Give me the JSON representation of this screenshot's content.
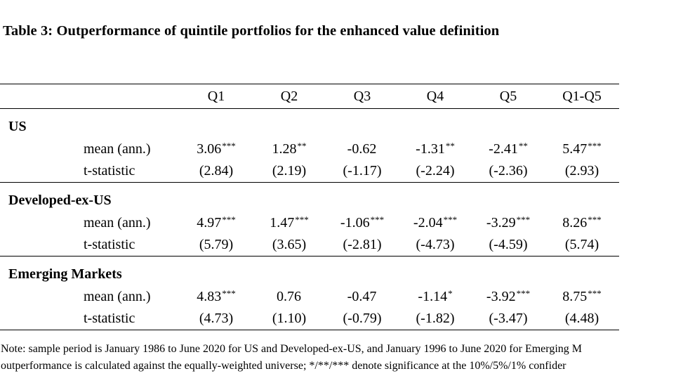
{
  "title": "Table 3: Outperformance of quintile portfolios for the enhanced value definition",
  "columns": [
    "Q1",
    "Q2",
    "Q3",
    "Q4",
    "Q5",
    "Q1-Q5"
  ],
  "groups": [
    {
      "name": "US",
      "mean_label": "mean (ann.)",
      "tstat_label": "t-statistic",
      "means": [
        {
          "value": "3.06",
          "stars": "***"
        },
        {
          "value": "1.28",
          "stars": "**"
        },
        {
          "value": "-0.62",
          "stars": ""
        },
        {
          "value": "-1.31",
          "stars": "**"
        },
        {
          "value": "-2.41",
          "stars": "**"
        },
        {
          "value": "5.47",
          "stars": "***"
        }
      ],
      "tstats": [
        "(2.84)",
        "(2.19)",
        "(-1.17)",
        "(-2.24)",
        "(-2.36)",
        "(2.93)"
      ]
    },
    {
      "name": "Developed-ex-US",
      "mean_label": "mean (ann.)",
      "tstat_label": "t-statistic",
      "means": [
        {
          "value": "4.97",
          "stars": "***"
        },
        {
          "value": "1.47",
          "stars": "***"
        },
        {
          "value": "-1.06",
          "stars": "***"
        },
        {
          "value": "-2.04",
          "stars": "***"
        },
        {
          "value": "-3.29",
          "stars": "***"
        },
        {
          "value": "8.26",
          "stars": "***"
        }
      ],
      "tstats": [
        "(5.79)",
        "(3.65)",
        "(-2.81)",
        "(-4.73)",
        "(-4.59)",
        "(5.74)"
      ]
    },
    {
      "name": "Emerging Markets",
      "mean_label": "mean (ann.)",
      "tstat_label": "t-statistic",
      "means": [
        {
          "value": "4.83",
          "stars": "***"
        },
        {
          "value": "0.76",
          "stars": ""
        },
        {
          "value": "-0.47",
          "stars": ""
        },
        {
          "value": "-1.14",
          "stars": "*"
        },
        {
          "value": "-3.92",
          "stars": "***"
        },
        {
          "value": "8.75",
          "stars": "***"
        }
      ],
      "tstats": [
        "(4.73)",
        "(1.10)",
        "(-0.79)",
        "(-1.82)",
        "(-3.47)",
        "(4.48)"
      ]
    }
  ],
  "note": {
    "line1": "Note: sample period is January 1986 to June 2020 for US and Developed-ex-US, and January 1996 to June 2020 for Emerging M",
    "line2": "outperformance is calculated against the equally-weighted universe; */**/*** denote significance at the 10%/5%/1% confider"
  }
}
